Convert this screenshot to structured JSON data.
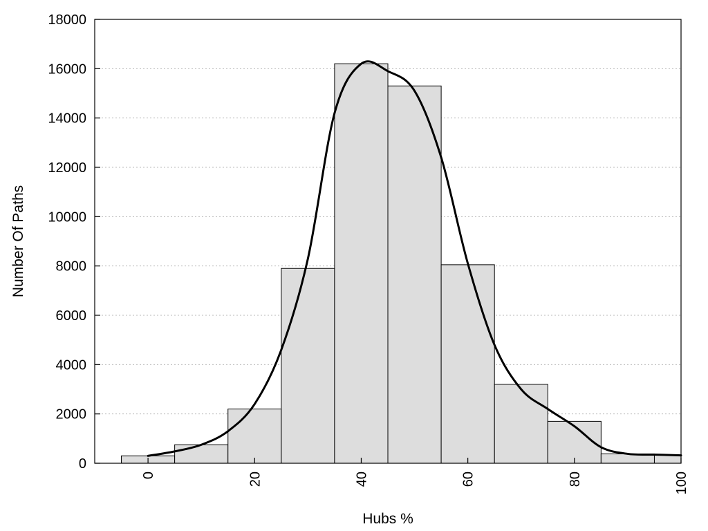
{
  "chart_data": {
    "type": "bar",
    "title": "",
    "xlabel": "Hubs %",
    "ylabel": "Number Of Paths",
    "xlim": [
      -10,
      100
    ],
    "ylim": [
      0,
      18000
    ],
    "grid": true,
    "legend": "none",
    "x_ticks": [
      0,
      20,
      40,
      60,
      80,
      100
    ],
    "y_ticks": [
      0,
      2000,
      4000,
      6000,
      8000,
      10000,
      12000,
      14000,
      16000,
      18000
    ],
    "bin_width": 10,
    "categories": [
      0,
      10,
      20,
      30,
      40,
      50,
      60,
      70,
      80,
      90,
      100
    ],
    "values": [
      300,
      750,
      2200,
      7900,
      16200,
      15300,
      8050,
      3200,
      1700,
      380,
      330
    ],
    "bar_color": "#dddddd",
    "curve": {
      "x": [
        0,
        5,
        10,
        15,
        20,
        25,
        30,
        35,
        40,
        45,
        50,
        55,
        60,
        65,
        70,
        75,
        80,
        85,
        90,
        95,
        100
      ],
      "y": [
        300,
        480,
        750,
        1300,
        2400,
        4600,
        8300,
        14200,
        16200,
        15900,
        15100,
        12400,
        8100,
        4800,
        3000,
        2200,
        1500,
        650,
        380,
        350,
        320
      ],
      "color": "#000000"
    }
  }
}
